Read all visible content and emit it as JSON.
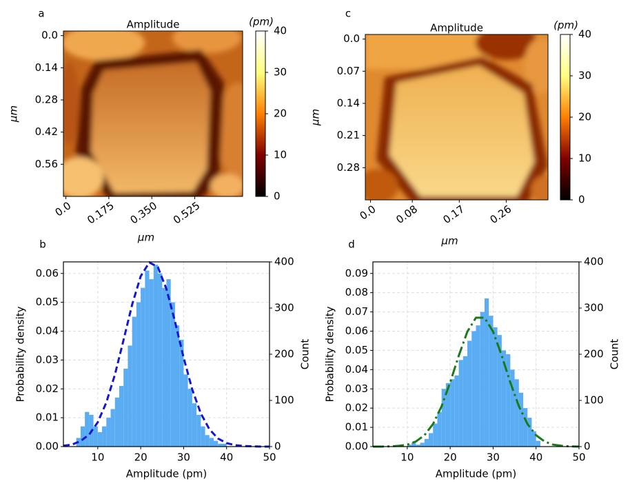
{
  "chart_data": [
    {
      "type": "heatmap",
      "panel_label": "a",
      "title": "Amplitude",
      "colorbar_label": "(pm)",
      "xlabel": "μm",
      "ylabel": "μm",
      "xlim": [
        -0.01,
        0.72
      ],
      "xticks": [
        {
          "value": 0,
          "label": "0.0"
        },
        0.175,
        {
          "value": 0.35,
          "label": "0.350"
        },
        0.525
      ],
      "ylim": [
        -0.02,
        0.7
      ],
      "yticks": [
        {
          "value": 0,
          "label": "0.0"
        },
        0.14,
        0.28,
        0.42,
        0.56
      ],
      "clim": [
        0,
        40
      ],
      "cticks": [
        0,
        10,
        20,
        30,
        40
      ],
      "colormap": "afmhot"
    },
    {
      "type": "histogram",
      "panel_label": "b",
      "xlabel": "Amplitude (pm)",
      "ylabel": "Probability density",
      "y2label": "Count",
      "ylabel_color": "#ff2020",
      "y2label_color": "#2020ff",
      "grid": true,
      "xlim": [
        2,
        50
      ],
      "xticks": [
        10,
        20,
        30,
        40,
        50
      ],
      "ylim": [
        0,
        0.064
      ],
      "yticks": [
        {
          "value": 0,
          "label": "0.00"
        },
        {
          "value": 0.01,
          "label": "0.01"
        },
        {
          "value": 0.02,
          "label": "0.02"
        },
        {
          "value": 0.03,
          "label": "0.03"
        },
        {
          "value": 0.04,
          "label": "0.04"
        },
        {
          "value": 0.05,
          "label": "0.05"
        },
        {
          "value": 0.06,
          "label": "0.06"
        }
      ],
      "y2lim": [
        0,
        400
      ],
      "y2ticks": [
        0,
        100,
        200,
        300,
        400
      ],
      "color": "#5aadf2",
      "bins": [
        5,
        6,
        7,
        8,
        9,
        10,
        11,
        12,
        13,
        14,
        15,
        16,
        17,
        18,
        19,
        20,
        21,
        22,
        23,
        24,
        25,
        26,
        27,
        28,
        29,
        30,
        31,
        32,
        33,
        34,
        35,
        36,
        37,
        38,
        39,
        40
      ],
      "values": [
        0.003,
        0.007,
        0.012,
        0.011,
        0.007,
        0.005,
        0.007,
        0.01,
        0.013,
        0.017,
        0.021,
        0.027,
        0.035,
        0.045,
        0.05,
        0.055,
        0.061,
        0.058,
        0.063,
        0.06,
        0.055,
        0.058,
        0.05,
        0.042,
        0.037,
        0.025,
        0.02,
        0.015,
        0.011,
        0.007,
        0.004,
        0.003,
        0.002,
        0.001,
        0.001
      ],
      "fit": {
        "color": "#1414d2",
        "linestyle": "dashed",
        "x": [
          2,
          4,
          6,
          8,
          10,
          12,
          14,
          16,
          18,
          20,
          22,
          24,
          26,
          28,
          30,
          32,
          34,
          36,
          38,
          40,
          42,
          44,
          46,
          48,
          50
        ],
        "values": [
          0.0003,
          0.0007,
          0.0019,
          0.0042,
          0.0084,
          0.0153,
          0.025,
          0.0369,
          0.0492,
          0.059,
          0.0638,
          0.0622,
          0.0546,
          0.0432,
          0.0308,
          0.0198,
          0.0115,
          0.006,
          0.0028,
          0.0012,
          0.0005,
          0.0002,
          0.0001,
          0,
          0
        ]
      }
    },
    {
      "type": "heatmap",
      "panel_label": "c",
      "title": "Amplitude",
      "colorbar_label": "(pm)",
      "xlabel": "μm",
      "ylabel": "μm",
      "xlim": [
        -0.01,
        0.34
      ],
      "xticks": [
        {
          "value": 0,
          "label": "0.0"
        },
        0.08,
        0.17,
        0.26
      ],
      "ylim": [
        -0.01,
        0.35
      ],
      "yticks": [
        {
          "value": 0,
          "label": "0.0"
        },
        0.07,
        0.14,
        0.21,
        0.28
      ],
      "clim": [
        0,
        40
      ],
      "cticks": [
        0,
        10,
        20,
        30,
        40
      ],
      "colormap": "afmhot"
    },
    {
      "type": "histogram",
      "panel_label": "d",
      "xlabel": "Amplitude (pm)",
      "ylabel": "Probability density",
      "y2label": "Count",
      "ylabel_color": "#ff2020",
      "y2label_color": "#2020ff",
      "grid": true,
      "xlim": [
        2,
        50
      ],
      "xticks": [
        10,
        20,
        30,
        40,
        50
      ],
      "ylim": [
        0,
        0.096
      ],
      "yticks": [
        {
          "value": 0,
          "label": "0.00"
        },
        {
          "value": 0.01,
          "label": "0.01"
        },
        {
          "value": 0.02,
          "label": "0.02"
        },
        {
          "value": 0.03,
          "label": "0.03"
        },
        {
          "value": 0.04,
          "label": "0.04"
        },
        {
          "value": 0.05,
          "label": "0.05"
        },
        {
          "value": 0.06,
          "label": "0.06"
        },
        {
          "value": 0.07,
          "label": "0.07"
        },
        {
          "value": 0.08,
          "label": "0.08"
        },
        {
          "value": 0.09,
          "label": "0.09"
        }
      ],
      "y2lim": [
        0,
        400
      ],
      "y2ticks": [
        0,
        100,
        200,
        300,
        400
      ],
      "color": "#5aadf2",
      "bins": [
        10,
        11,
        12,
        13,
        14,
        15,
        16,
        17,
        18,
        19,
        20,
        21,
        22,
        23,
        24,
        25,
        26,
        27,
        28,
        29,
        30,
        31,
        32,
        33,
        34,
        35,
        36,
        37,
        38,
        39,
        40,
        41
      ],
      "values": [
        0.001,
        0.002,
        0.001,
        0.002,
        0.004,
        0.007,
        0.012,
        0.018,
        0.03,
        0.033,
        0.035,
        0.037,
        0.045,
        0.047,
        0.055,
        0.06,
        0.063,
        0.07,
        0.077,
        0.068,
        0.062,
        0.058,
        0.05,
        0.048,
        0.04,
        0.035,
        0.028,
        0.02,
        0.015,
        0.008,
        0.003
      ],
      "fit": {
        "color": "#1a7a1a",
        "linestyle": "dashdot",
        "x": [
          2,
          4,
          6,
          8,
          10,
          12,
          14,
          16,
          18,
          20,
          22,
          24,
          26,
          28,
          30,
          32,
          34,
          36,
          38,
          40,
          42,
          44,
          46,
          48,
          50
        ],
        "values": [
          0,
          0,
          0.0001,
          0.0004,
          0.001,
          0.0026,
          0.0059,
          0.0117,
          0.021,
          0.0334,
          0.0473,
          0.0597,
          0.067,
          0.067,
          0.0597,
          0.0473,
          0.0334,
          0.021,
          0.0117,
          0.0059,
          0.0026,
          0.001,
          0.0004,
          0.0001,
          0
        ]
      }
    }
  ]
}
